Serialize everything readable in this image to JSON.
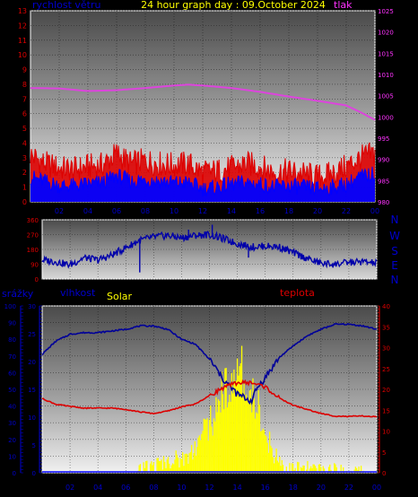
{
  "title": "24 hour graph day : 09.October 2024",
  "colors": {
    "wind": "#dd0000",
    "gust": "#0000ff",
    "pressure": "#dd44dd",
    "direction": "#0000aa",
    "humidity": "#000099",
    "temperature": "#dd0000",
    "solar": "#ffff00",
    "rain": "#0000ff",
    "title": "#ffff00",
    "left_axis": "#dd0000",
    "right_axis": "#ff33ff",
    "label_blue": "#0000cc"
  },
  "panels": {
    "top": {
      "label_left": "rychlost větru",
      "label_right": "tlak"
    },
    "middle": {
      "compass": [
        "N",
        "W",
        "S",
        "E",
        "N"
      ]
    },
    "bottom": {
      "label_rain": "srážky",
      "label_humidity": "vlhkost",
      "label_solar": "Solar",
      "label_temperature": "teplota"
    }
  },
  "chart_data": [
    {
      "type": "line",
      "title": "24 hour graph day : 09.October 2024",
      "x_tick_labels": [
        "02",
        "04",
        "06",
        "08",
        "10",
        "12",
        "14",
        "16",
        "18",
        "20",
        "22",
        "00"
      ],
      "y_left": {
        "label": "rychlost větru",
        "ticks": [
          "0",
          "1",
          "2",
          "3",
          "4",
          "5",
          "6",
          "7",
          "8",
          "9",
          "10",
          "11",
          "12",
          "13"
        ],
        "range": [
          0,
          13
        ]
      },
      "y_right": {
        "label": "tlak",
        "ticks": [
          "980",
          "985",
          "990",
          "995",
          "1000",
          "1005",
          "1010",
          "1015",
          "1020",
          "1025"
        ],
        "range": [
          980,
          1025
        ]
      },
      "grid": true,
      "series": [
        {
          "name": "tlak",
          "axis": "right",
          "x": [
            0,
            2,
            4,
            6,
            8,
            10,
            11,
            12,
            14,
            16,
            18,
            20,
            22,
            23,
            24
          ],
          "values": [
            1006.8,
            1006.7,
            1006.1,
            1006.3,
            1006.8,
            1007.4,
            1007.6,
            1007.4,
            1006.8,
            1005.9,
            1004.8,
            1003.8,
            1002.7,
            1001.1,
            999.3
          ]
        },
        {
          "name": "wind speed",
          "axis": "left",
          "x": [
            0,
            1,
            2,
            3,
            4,
            5,
            6,
            7,
            8,
            9,
            10,
            11,
            12,
            13,
            14,
            15,
            16,
            17,
            18,
            19,
            20,
            21,
            22,
            23,
            24
          ],
          "values": [
            1.7,
            1.4,
            1.1,
            1.1,
            1.2,
            1.3,
            1.8,
            1.4,
            1.5,
            1.4,
            1.3,
            1.3,
            0.9,
            1.0,
            1.2,
            1.3,
            1.2,
            1.0,
            1.1,
            1.0,
            0.9,
            1.0,
            1.2,
            1.7,
            1.9
          ]
        },
        {
          "name": "wind gust",
          "axis": "left",
          "x": [
            0,
            1,
            2,
            3,
            4,
            5,
            6,
            7,
            8,
            9,
            10,
            11,
            12,
            13,
            14,
            15,
            16,
            17,
            18,
            19,
            20,
            21,
            22,
            23,
            24
          ],
          "values": [
            3.2,
            2.6,
            2.3,
            2.2,
            2.4,
            2.5,
            3.3,
            2.6,
            2.8,
            2.6,
            2.5,
            2.6,
            2.0,
            2.1,
            2.3,
            2.6,
            2.4,
            2.0,
            2.1,
            1.9,
            1.7,
            1.9,
            2.4,
            3.0,
            3.3
          ]
        }
      ]
    },
    {
      "type": "line",
      "y_ticks": [
        "0",
        "90",
        "180",
        "270",
        "360"
      ],
      "range": [
        0,
        360
      ],
      "grid": true,
      "series": [
        {
          "name": "wind direction",
          "x": [
            0,
            1,
            2,
            3,
            4,
            5,
            6,
            7,
            8,
            9,
            10,
            11,
            12,
            13,
            14,
            15,
            16,
            17,
            18,
            19,
            20,
            21,
            22,
            23,
            24
          ],
          "values": [
            115,
            105,
            85,
            130,
            115,
            145,
            190,
            235,
            255,
            265,
            250,
            265,
            270,
            245,
            215,
            195,
            200,
            195,
            160,
            125,
            95,
            90,
            100,
            105,
            95
          ]
        }
      ]
    },
    {
      "type": "line",
      "y_rain": {
        "label": "srážky",
        "ticks": [
          "0",
          "10",
          "20",
          "30",
          "40",
          "50",
          "60",
          "70",
          "80",
          "90",
          "100"
        ],
        "range": [
          0,
          100
        ]
      },
      "y_humidity": {
        "label": "vlhkost",
        "ticks": [
          "0",
          "5",
          "10",
          "15",
          "20",
          "25",
          "30"
        ],
        "range": [
          0,
          30
        ]
      },
      "y_temperature": {
        "label": "teplota",
        "ticks": [
          "0",
          "5",
          "10",
          "15",
          "20",
          "25",
          "30",
          "35",
          "40"
        ],
        "range": [
          0,
          40
        ]
      },
      "grid": true,
      "series": [
        {
          "name": "vlhkost",
          "x": [
            0,
            1,
            2,
            3,
            4,
            5,
            6,
            7,
            8,
            9,
            10,
            11,
            12,
            13,
            14,
            15,
            15.5,
            16,
            17,
            18,
            19,
            20,
            21,
            22,
            23,
            24
          ],
          "values": [
            71,
            79,
            83,
            84,
            84,
            85,
            86,
            88,
            88,
            86,
            80,
            77,
            68,
            56,
            47,
            43,
            52,
            57,
            69,
            76,
            82,
            86,
            89,
            89,
            88,
            86
          ]
        },
        {
          "name": "teplota",
          "x": [
            0,
            1,
            2,
            3,
            4,
            5,
            6,
            7,
            8,
            9,
            10,
            11,
            12,
            13,
            14,
            15,
            16,
            17,
            18,
            19,
            20,
            21,
            22,
            23,
            24
          ],
          "values": [
            17.8,
            16.4,
            15.9,
            15.5,
            15.5,
            15.5,
            15.2,
            14.6,
            14.2,
            14.8,
            15.8,
            16.5,
            18.5,
            20.4,
            21.6,
            21.6,
            20.6,
            17.9,
            16.2,
            15.2,
            14.2,
            13.6,
            13.5,
            13.6,
            13.4
          ]
        },
        {
          "name": "Solar",
          "x": [
            0,
            6.8,
            7.5,
            8.5,
            9.5,
            10.5,
            11.5,
            12.5,
            13.0,
            13.5,
            14.0,
            14.5,
            15.0,
            15.5,
            16.0,
            16.5,
            17.5,
            24
          ],
          "values": [
            0,
            0,
            1,
            2,
            3,
            4,
            9,
            13,
            20,
            19,
            23,
            22,
            16,
            15,
            9,
            5,
            1,
            0
          ]
        }
      ]
    }
  ]
}
